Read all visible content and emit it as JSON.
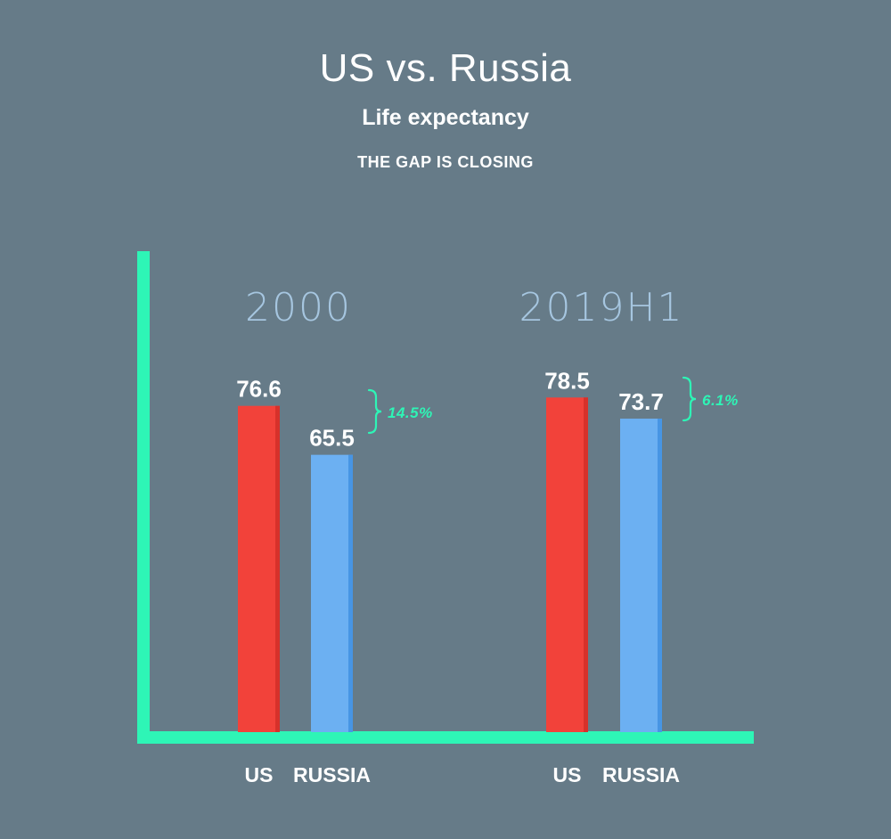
{
  "header": {
    "title": "US vs. Russia",
    "subtitle": "Life expectancy",
    "tagline": "THE GAP IS CLOSING"
  },
  "colors": {
    "background": "#667b88",
    "axis": "#2ef5b6",
    "us_bar": "#f2423a",
    "russia_bar": "#6cb0f2",
    "gap_annotation": "#2ef5b6",
    "group_label": "#a6c6e0"
  },
  "chart_data": {
    "type": "bar",
    "groups": [
      "2000",
      "2019H1"
    ],
    "categories": [
      "US",
      "RUSSIA"
    ],
    "series": [
      {
        "name": "US",
        "values": [
          76.6,
          78.5
        ]
      },
      {
        "name": "RUSSIA",
        "values": [
          65.5,
          73.7
        ]
      }
    ],
    "value_labels": [
      [
        "76.6",
        "65.5"
      ],
      [
        "78.5",
        "73.7"
      ]
    ],
    "annotations": [
      {
        "group": "2000",
        "text": "14.5%"
      },
      {
        "group": "2019H1",
        "text": "6.1%"
      }
    ],
    "xlabel": "",
    "ylabel": "",
    "grid": false,
    "legend": "none"
  }
}
